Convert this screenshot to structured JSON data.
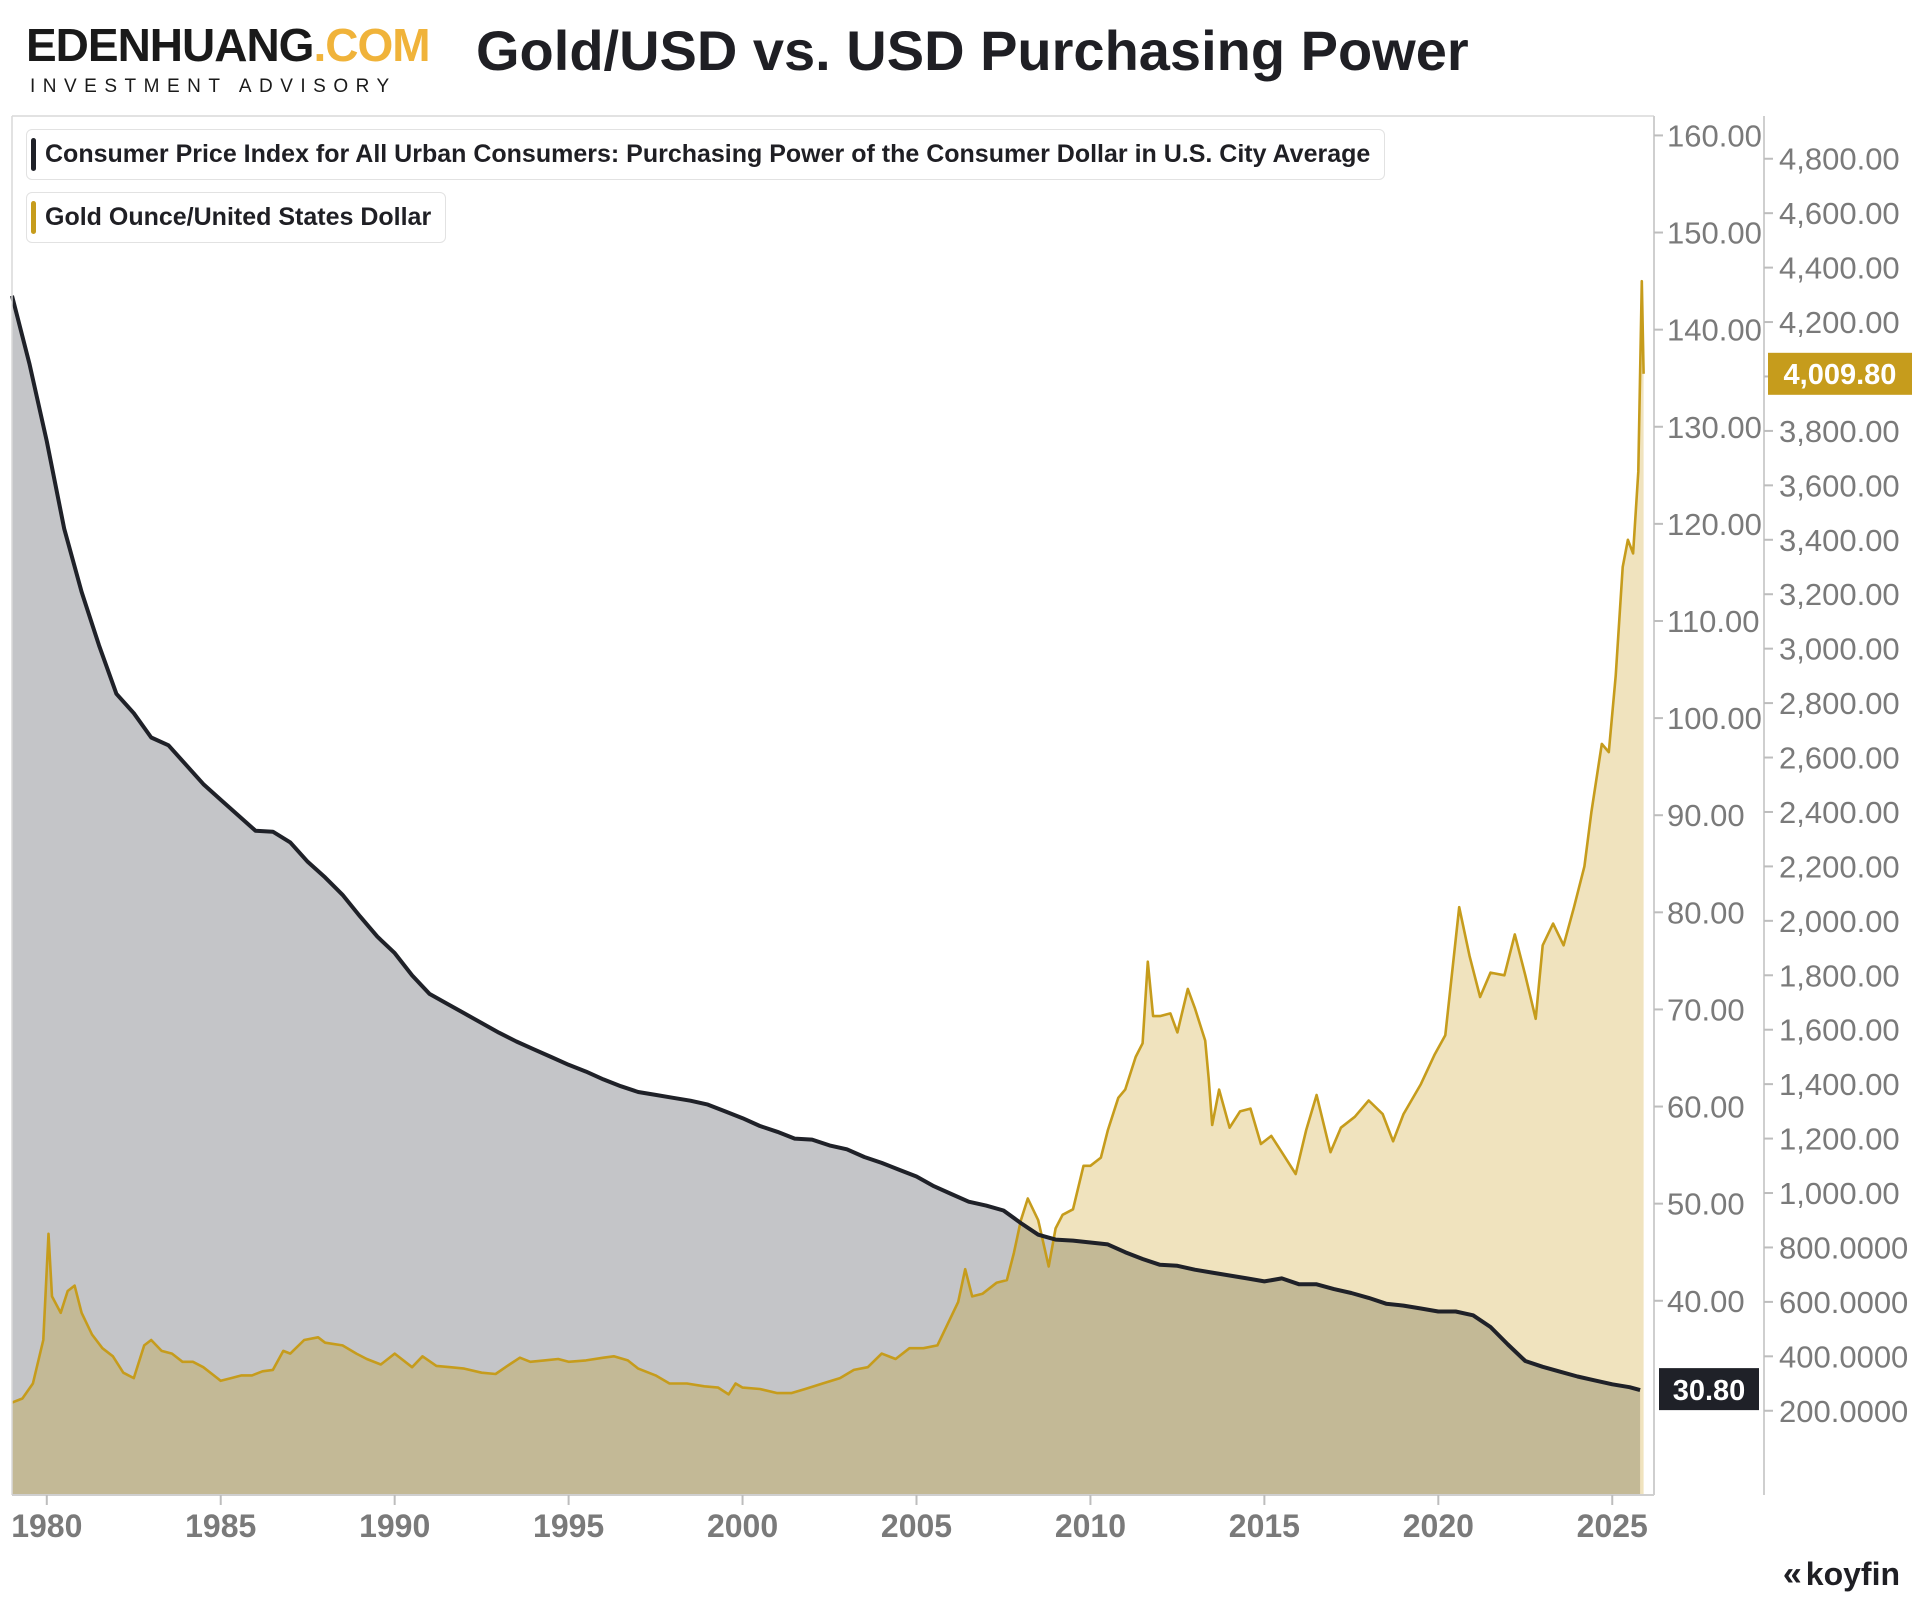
{
  "brand": {
    "name_main": "EDENHUANG",
    "name_tld": ".COM",
    "tagline": "INVESTMENT ADVISORY"
  },
  "title": "Gold/USD vs. USD Purchasing Power",
  "footer": {
    "logo_text": "koyfin"
  },
  "colors": {
    "ppi": "#1f2128",
    "ppi_fill": "#c4c5c8",
    "gold": "#c69c1c",
    "gold_fill": "#f0e3be",
    "overlap_fill": "#c3b996"
  },
  "chart_data": {
    "type": "area",
    "xlim": [
      1979,
      2026.2
    ],
    "x_ticks": [
      "1980",
      "1985",
      "1990",
      "1995",
      "2000",
      "2005",
      "2010",
      "2015",
      "2020",
      "2025"
    ],
    "grid": false,
    "legend_position": "top-left",
    "axes": {
      "left": {
        "range": [
          20,
          162
        ],
        "ticks": [
          "40.00",
          "50.00",
          "60.00",
          "70.00",
          "80.00",
          "90.00",
          "100.00",
          "110.00",
          "120.00",
          "130.00",
          "140.00",
          "150.00",
          "160.00"
        ]
      },
      "right": {
        "range": [
          -109.5,
          4957
        ],
        "ticks": [
          "200.0000",
          "400.0000",
          "600.0000",
          "800.0000",
          "1,000.00",
          "1,200.00",
          "1,400.00",
          "1,600.00",
          "1,800.00",
          "2,000.00",
          "2,200.00",
          "2,400.00",
          "2,600.00",
          "2,800.00",
          "3,000.00",
          "3,200.00",
          "3,400.00",
          "3,600.00",
          "3,800.00",
          "4,000.00",
          "4,200.00",
          "4,400.00",
          "4,600.00",
          "4,800.00"
        ]
      }
    },
    "series": [
      {
        "name": "Consumer Price Index for All Urban Consumers: Purchasing Power of the Consumer Dollar in U.S. City Average",
        "axis": "left",
        "last_value_label": "30.80",
        "points": [
          [
            1979.0,
            143.5
          ],
          [
            1979.5,
            136.5
          ],
          [
            1980.0,
            128.5
          ],
          [
            1980.5,
            119.5
          ],
          [
            1981.0,
            113.0
          ],
          [
            1981.5,
            107.5
          ],
          [
            1982.0,
            102.5
          ],
          [
            1982.5,
            100.5
          ],
          [
            1983.0,
            98.0
          ],
          [
            1983.5,
            97.2
          ],
          [
            1984.0,
            95.2
          ],
          [
            1984.5,
            93.2
          ],
          [
            1985.0,
            91.6
          ],
          [
            1985.5,
            90.0
          ],
          [
            1986.0,
            88.4
          ],
          [
            1986.5,
            88.3
          ],
          [
            1987.0,
            87.2
          ],
          [
            1987.5,
            85.2
          ],
          [
            1988.0,
            83.6
          ],
          [
            1988.5,
            81.8
          ],
          [
            1989.0,
            79.6
          ],
          [
            1989.5,
            77.5
          ],
          [
            1990.0,
            75.8
          ],
          [
            1990.5,
            73.5
          ],
          [
            1991.0,
            71.6
          ],
          [
            1991.5,
            70.6
          ],
          [
            1992.0,
            69.6
          ],
          [
            1992.5,
            68.6
          ],
          [
            1993.0,
            67.6
          ],
          [
            1993.5,
            66.7
          ],
          [
            1994.0,
            65.9
          ],
          [
            1994.5,
            65.1
          ],
          [
            1995.0,
            64.3
          ],
          [
            1995.5,
            63.6
          ],
          [
            1996.0,
            62.8
          ],
          [
            1996.5,
            62.1
          ],
          [
            1997.0,
            61.5
          ],
          [
            1997.5,
            61.2
          ],
          [
            1998.0,
            60.9
          ],
          [
            1998.5,
            60.6
          ],
          [
            1999.0,
            60.2
          ],
          [
            1999.5,
            59.5
          ],
          [
            2000.0,
            58.8
          ],
          [
            2000.5,
            58.0
          ],
          [
            2001.0,
            57.4
          ],
          [
            2001.5,
            56.7
          ],
          [
            2002.0,
            56.6
          ],
          [
            2002.5,
            56.0
          ],
          [
            2003.0,
            55.6
          ],
          [
            2003.5,
            54.8
          ],
          [
            2004.0,
            54.2
          ],
          [
            2004.5,
            53.5
          ],
          [
            2005.0,
            52.8
          ],
          [
            2005.5,
            51.8
          ],
          [
            2006.0,
            51.0
          ],
          [
            2006.5,
            50.2
          ],
          [
            2007.0,
            49.8
          ],
          [
            2007.5,
            49.3
          ],
          [
            2008.0,
            48.0
          ],
          [
            2008.5,
            46.8
          ],
          [
            2009.0,
            46.3
          ],
          [
            2009.5,
            46.2
          ],
          [
            2010.0,
            46.0
          ],
          [
            2010.5,
            45.8
          ],
          [
            2011.0,
            45.0
          ],
          [
            2011.5,
            44.3
          ],
          [
            2012.0,
            43.7
          ],
          [
            2012.5,
            43.6
          ],
          [
            2013.0,
            43.2
          ],
          [
            2013.5,
            42.9
          ],
          [
            2014.0,
            42.6
          ],
          [
            2014.5,
            42.3
          ],
          [
            2015.0,
            42.0
          ],
          [
            2015.5,
            42.3
          ],
          [
            2016.0,
            41.7
          ],
          [
            2016.5,
            41.7
          ],
          [
            2017.0,
            41.2
          ],
          [
            2017.5,
            40.8
          ],
          [
            2018.0,
            40.3
          ],
          [
            2018.5,
            39.7
          ],
          [
            2019.0,
            39.5
          ],
          [
            2019.5,
            39.2
          ],
          [
            2020.0,
            38.9
          ],
          [
            2020.5,
            38.9
          ],
          [
            2021.0,
            38.5
          ],
          [
            2021.5,
            37.3
          ],
          [
            2022.0,
            35.5
          ],
          [
            2022.5,
            33.8
          ],
          [
            2023.0,
            33.2
          ],
          [
            2023.5,
            32.7
          ],
          [
            2024.0,
            32.2
          ],
          [
            2024.5,
            31.8
          ],
          [
            2025.0,
            31.4
          ],
          [
            2025.5,
            31.1
          ],
          [
            2025.8,
            30.8
          ]
        ]
      },
      {
        "name": "Gold Ounce/United States Dollar",
        "axis": "right",
        "last_value_label": "4,009.80",
        "points": [
          [
            1979.0,
            230
          ],
          [
            1979.3,
            245
          ],
          [
            1979.6,
            300
          ],
          [
            1979.9,
            460
          ],
          [
            1980.05,
            850
          ],
          [
            1980.15,
            620
          ],
          [
            1980.4,
            560
          ],
          [
            1980.6,
            640
          ],
          [
            1980.8,
            660
          ],
          [
            1981.0,
            560
          ],
          [
            1981.3,
            480
          ],
          [
            1981.6,
            430
          ],
          [
            1981.9,
            400
          ],
          [
            1982.2,
            340
          ],
          [
            1982.5,
            320
          ],
          [
            1982.8,
            440
          ],
          [
            1983.0,
            460
          ],
          [
            1983.3,
            420
          ],
          [
            1983.6,
            410
          ],
          [
            1983.9,
            380
          ],
          [
            1984.2,
            380
          ],
          [
            1984.5,
            360
          ],
          [
            1984.8,
            330
          ],
          [
            1985.0,
            310
          ],
          [
            1985.3,
            320
          ],
          [
            1985.6,
            330
          ],
          [
            1985.9,
            330
          ],
          [
            1986.2,
            345
          ],
          [
            1986.5,
            350
          ],
          [
            1986.8,
            420
          ],
          [
            1987.0,
            410
          ],
          [
            1987.4,
            460
          ],
          [
            1987.8,
            470
          ],
          [
            1988.0,
            450
          ],
          [
            1988.5,
            440
          ],
          [
            1988.9,
            410
          ],
          [
            1989.2,
            390
          ],
          [
            1989.6,
            370
          ],
          [
            1990.0,
            410
          ],
          [
            1990.5,
            360
          ],
          [
            1990.8,
            400
          ],
          [
            1991.2,
            365
          ],
          [
            1991.6,
            360
          ],
          [
            1992.0,
            355
          ],
          [
            1992.5,
            340
          ],
          [
            1992.9,
            335
          ],
          [
            1993.3,
            370
          ],
          [
            1993.6,
            395
          ],
          [
            1993.9,
            380
          ],
          [
            1994.3,
            385
          ],
          [
            1994.7,
            390
          ],
          [
            1995.0,
            380
          ],
          [
            1995.5,
            385
          ],
          [
            1996.0,
            395
          ],
          [
            1996.3,
            400
          ],
          [
            1996.7,
            385
          ],
          [
            1997.0,
            355
          ],
          [
            1997.5,
            330
          ],
          [
            1997.9,
            300
          ],
          [
            1998.4,
            300
          ],
          [
            1998.9,
            290
          ],
          [
            1999.3,
            285
          ],
          [
            1999.6,
            260
          ],
          [
            1999.8,
            300
          ],
          [
            2000.0,
            285
          ],
          [
            2000.5,
            280
          ],
          [
            2001.0,
            265
          ],
          [
            2001.4,
            265
          ],
          [
            2001.8,
            280
          ],
          [
            2002.3,
            300
          ],
          [
            2002.8,
            320
          ],
          [
            2003.2,
            350
          ],
          [
            2003.6,
            360
          ],
          [
            2004.0,
            410
          ],
          [
            2004.4,
            390
          ],
          [
            2004.8,
            430
          ],
          [
            2005.2,
            430
          ],
          [
            2005.6,
            440
          ],
          [
            2005.9,
            520
          ],
          [
            2006.2,
            600
          ],
          [
            2006.4,
            720
          ],
          [
            2006.6,
            620
          ],
          [
            2006.9,
            630
          ],
          [
            2007.3,
            670
          ],
          [
            2007.6,
            680
          ],
          [
            2007.8,
            780
          ],
          [
            2008.0,
            900
          ],
          [
            2008.2,
            980
          ],
          [
            2008.5,
            900
          ],
          [
            2008.8,
            730
          ],
          [
            2009.0,
            870
          ],
          [
            2009.2,
            920
          ],
          [
            2009.5,
            940
          ],
          [
            2009.8,
            1100
          ],
          [
            2010.0,
            1100
          ],
          [
            2010.3,
            1130
          ],
          [
            2010.5,
            1230
          ],
          [
            2010.8,
            1350
          ],
          [
            2011.0,
            1380
          ],
          [
            2011.3,
            1500
          ],
          [
            2011.5,
            1550
          ],
          [
            2011.65,
            1850
          ],
          [
            2011.8,
            1650
          ],
          [
            2012.0,
            1650
          ],
          [
            2012.3,
            1660
          ],
          [
            2012.5,
            1590
          ],
          [
            2012.8,
            1750
          ],
          [
            2013.0,
            1680
          ],
          [
            2013.3,
            1560
          ],
          [
            2013.4,
            1420
          ],
          [
            2013.5,
            1250
          ],
          [
            2013.7,
            1380
          ],
          [
            2014.0,
            1240
          ],
          [
            2014.3,
            1300
          ],
          [
            2014.6,
            1310
          ],
          [
            2014.9,
            1180
          ],
          [
            2015.2,
            1210
          ],
          [
            2015.5,
            1150
          ],
          [
            2015.9,
            1070
          ],
          [
            2016.2,
            1230
          ],
          [
            2016.5,
            1360
          ],
          [
            2016.9,
            1150
          ],
          [
            2017.2,
            1240
          ],
          [
            2017.6,
            1280
          ],
          [
            2018.0,
            1340
          ],
          [
            2018.4,
            1290
          ],
          [
            2018.7,
            1190
          ],
          [
            2019.0,
            1290
          ],
          [
            2019.5,
            1400
          ],
          [
            2019.9,
            1510
          ],
          [
            2020.2,
            1580
          ],
          [
            2020.6,
            2050
          ],
          [
            2020.9,
            1870
          ],
          [
            2021.2,
            1720
          ],
          [
            2021.5,
            1810
          ],
          [
            2021.9,
            1800
          ],
          [
            2022.2,
            1950
          ],
          [
            2022.5,
            1800
          ],
          [
            2022.8,
            1640
          ],
          [
            2023.0,
            1910
          ],
          [
            2023.3,
            1990
          ],
          [
            2023.6,
            1910
          ],
          [
            2023.9,
            2050
          ],
          [
            2024.2,
            2200
          ],
          [
            2024.4,
            2400
          ],
          [
            2024.7,
            2650
          ],
          [
            2024.9,
            2620
          ],
          [
            2025.1,
            2900
          ],
          [
            2025.3,
            3300
          ],
          [
            2025.45,
            3400
          ],
          [
            2025.6,
            3350
          ],
          [
            2025.75,
            3650
          ],
          [
            2025.85,
            4350
          ],
          [
            2025.9,
            4009.8
          ]
        ]
      }
    ]
  }
}
